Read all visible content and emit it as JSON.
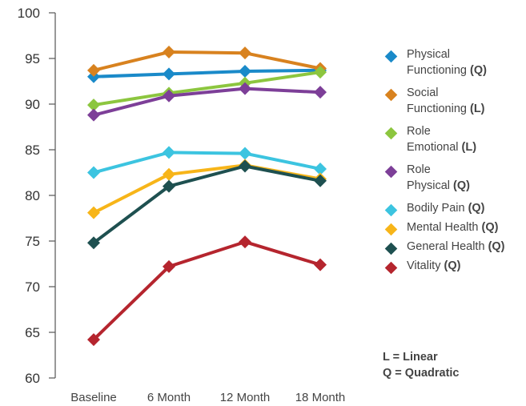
{
  "chart_data": {
    "type": "line",
    "categories": [
      "Baseline",
      "6 Month",
      "12 Month",
      "18 Month"
    ],
    "ylim": [
      60,
      100
    ],
    "yticks": [
      60,
      65,
      70,
      75,
      80,
      85,
      90,
      95,
      100
    ],
    "series": [
      {
        "name": "Physical Functioning",
        "trend": "(Q)",
        "name_lines": [
          "Physical",
          "Functioning"
        ],
        "color": "#1a8ac9",
        "values": [
          93.0,
          93.3,
          93.6,
          93.7
        ]
      },
      {
        "name": "Social Functioning",
        "trend": "(L)",
        "name_lines": [
          "Social",
          "Functioning"
        ],
        "color": "#d8821f",
        "values": [
          93.7,
          95.7,
          95.6,
          93.9
        ]
      },
      {
        "name": "Role Emotional",
        "trend": "(L)",
        "name_lines": [
          "Role",
          "Emotional"
        ],
        "color": "#8cc63f",
        "values": [
          89.9,
          91.2,
          92.3,
          93.5
        ]
      },
      {
        "name": "Role Physical",
        "trend": "(Q)",
        "name_lines": [
          "Role",
          "Physical"
        ],
        "color": "#7d3f98",
        "values": [
          88.8,
          90.9,
          91.7,
          91.3
        ]
      },
      {
        "name": "Bodily Pain",
        "trend": "(Q)",
        "name_lines": [
          "Bodily Pain"
        ],
        "color": "#3cc4e0",
        "values": [
          82.5,
          84.7,
          84.6,
          82.9
        ]
      },
      {
        "name": "Mental Health",
        "trend": "(Q)",
        "name_lines": [
          "Mental Health"
        ],
        "color": "#f7b519",
        "values": [
          78.1,
          82.3,
          83.3,
          81.8
        ]
      },
      {
        "name": "General Health",
        "trend": "(Q)",
        "name_lines": [
          "General Health"
        ],
        "color": "#1e5050",
        "values": [
          74.8,
          81.0,
          83.2,
          81.6
        ]
      },
      {
        "name": "Vitality",
        "trend": "(Q)",
        "name_lines": [
          "Vitality"
        ],
        "color": "#b5252e",
        "values": [
          64.2,
          72.2,
          74.9,
          72.4
        ]
      }
    ],
    "legend_position": "right",
    "grid": false,
    "notes": [
      "L = Linear",
      "Q = Quadratic"
    ]
  }
}
